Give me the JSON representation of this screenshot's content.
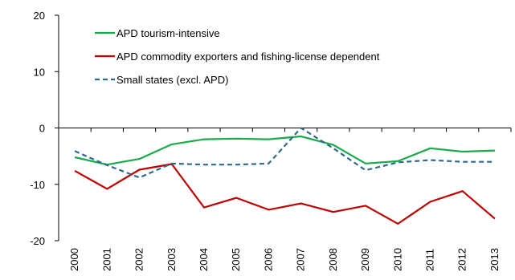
{
  "chart_data": {
    "type": "line",
    "x": [
      "2000",
      "2001",
      "2002",
      "2003",
      "2004",
      "2005",
      "2006",
      "2007",
      "2008",
      "2009",
      "2010",
      "2011",
      "2012",
      "2013"
    ],
    "ylim": [
      -20,
      20
    ],
    "yticks": [
      20,
      10,
      0,
      -10,
      -20
    ],
    "ytick_labels": [
      "20",
      "10",
      "0",
      "-10",
      "-20"
    ],
    "grid": false,
    "legend_position": "top-left",
    "series": [
      {
        "name": "APD tourism-intensive",
        "color": "#1aaa4a",
        "dash": "solid",
        "values": [
          -5.2,
          -6.5,
          -5.5,
          -2.9,
          -2.0,
          -1.9,
          -2.0,
          -1.5,
          -3.0,
          -6.3,
          -5.9,
          -3.6,
          -4.2,
          -4.0
        ]
      },
      {
        "name": "APD commodity exporters and fishing-license dependent",
        "color": "#c00000",
        "dash": "solid",
        "values": [
          -7.6,
          -10.8,
          -7.4,
          -6.4,
          -14.1,
          -12.4,
          -14.5,
          -13.4,
          -14.9,
          -13.8,
          -17.0,
          -13.1,
          -11.2,
          -16.1
        ]
      },
      {
        "name": "Small states (excl. APD)",
        "color": "#2e6a8c",
        "dash": "dashed",
        "values": [
          -4.1,
          -6.6,
          -8.8,
          -6.3,
          -6.5,
          -6.5,
          -6.3,
          0.0,
          -3.6,
          -7.5,
          -6.1,
          -5.7,
          -6.0,
          -6.0
        ]
      }
    ]
  }
}
